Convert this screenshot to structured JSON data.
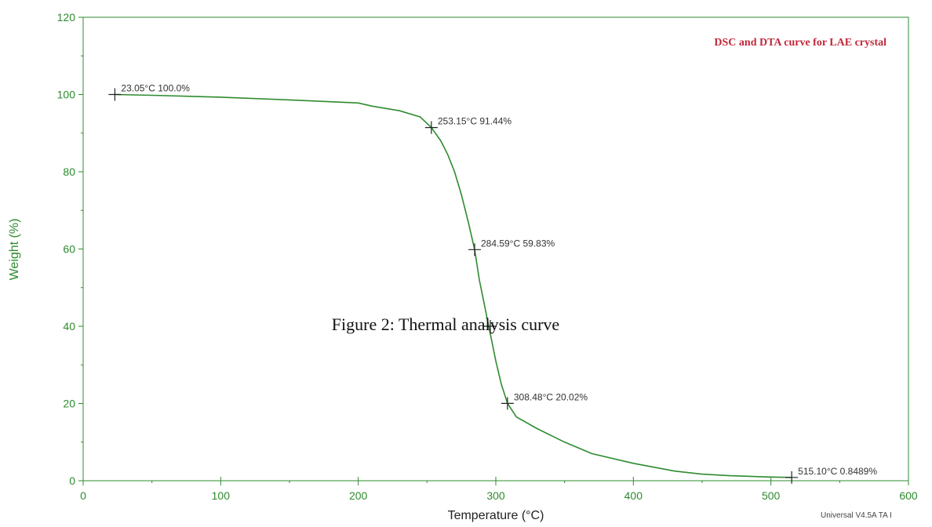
{
  "chart_data": {
    "type": "line",
    "title": "DSC and DTA curve for LAE crystal",
    "caption": "Figure 2: Thermal analysis curve",
    "xlabel": "Temperature (°C)",
    "ylabel": "Weight (%)",
    "xlim": [
      0,
      600
    ],
    "ylim": [
      0,
      120
    ],
    "x_ticks": [
      0,
      100,
      200,
      300,
      400,
      500,
      600
    ],
    "y_ticks": [
      0,
      20,
      40,
      60,
      80,
      100,
      120
    ],
    "grid": false,
    "legend": "none",
    "footer": "Universal V4.5A TA I",
    "series": [
      {
        "x": [
          23.05,
          50,
          100,
          150,
          200,
          210,
          230,
          245,
          253.15,
          260,
          265,
          270,
          275,
          280,
          284.59,
          288,
          292,
          296,
          300,
          304,
          308.48,
          315,
          330,
          350,
          370,
          400,
          430,
          450,
          470,
          500,
          515.1
        ],
        "y": [
          100.0,
          99.8,
          99.3,
          98.6,
          97.8,
          97.0,
          95.8,
          94.2,
          91.44,
          88.0,
          84.5,
          80.0,
          74.0,
          67.0,
          59.83,
          52.0,
          45.0,
          38.0,
          31.0,
          25.0,
          20.02,
          16.5,
          13.5,
          10.0,
          7.0,
          4.5,
          2.5,
          1.7,
          1.3,
          0.95,
          0.8489
        ]
      }
    ],
    "markers": [
      {
        "x": 23.05,
        "y": 100.0,
        "label": "23.05°C 100.0%"
      },
      {
        "x": 253.15,
        "y": 91.44,
        "label": "253.15°C 91.44%"
      },
      {
        "x": 284.59,
        "y": 59.83,
        "label": "284.59°C 59.83%"
      },
      {
        "x": 296.0,
        "y": 40.0,
        "label": ""
      },
      {
        "x": 308.48,
        "y": 20.02,
        "label": "308.48°C 20.02%"
      },
      {
        "x": 515.1,
        "y": 0.8489,
        "label": "515.10°C 0.8489%"
      }
    ],
    "colors": {
      "curve": "#2e8b2e",
      "axis": "#2e8b2e",
      "tick_label": "#2e8b2e",
      "title": "#c0283a",
      "marker": "#222222"
    }
  }
}
